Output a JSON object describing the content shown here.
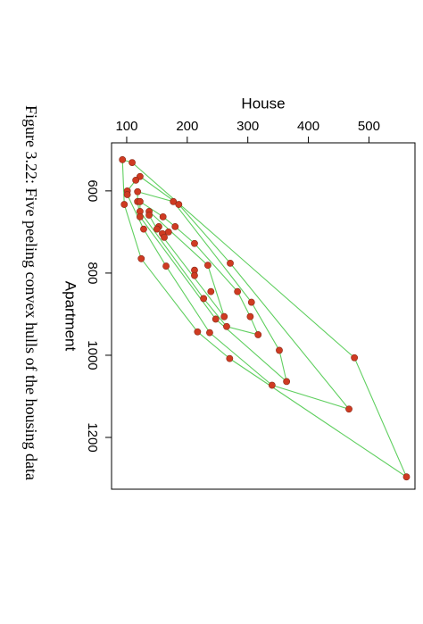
{
  "chart_data": {
    "type": "scatter",
    "caption": "Figure 3.22: Five peeling convex hulls of the housing data",
    "x_label": "House",
    "y_label": "Apartment",
    "x": [
      93,
      109,
      122,
      115,
      101,
      101,
      118,
      96,
      118,
      122,
      177,
      186,
      122,
      137,
      137,
      122,
      160,
      153,
      128,
      150,
      159,
      169,
      180,
      162,
      212,
      124,
      271,
      234,
      165,
      212,
      212,
      239,
      283,
      227,
      306,
      247,
      261,
      265,
      217,
      237,
      317,
      304,
      270,
      352,
      476,
      340,
      364,
      467,
      562
    ],
    "values": [
      524,
      531,
      565,
      574,
      600,
      609,
      602,
      633,
      626,
      626,
      626,
      633,
      650,
      650,
      659,
      663,
      663,
      687,
      693,
      693,
      704,
      700,
      687,
      713,
      728,
      765,
      776,
      781,
      783,
      793,
      806,
      845,
      845,
      862,
      871,
      912,
      906,
      930,
      943,
      945,
      950,
      906,
      1008,
      988,
      1006,
      1073,
      1064,
      1131,
      1296
    ],
    "color": "#cf3b22",
    "line_color": "#5fcf5f",
    "peel_layers": 5,
    "xlim": [
      75,
      576
    ],
    "ylim": [
      483,
      1326
    ],
    "xticks": [
      100,
      200,
      300,
      400,
      500
    ],
    "yticks": [
      600,
      800,
      1000,
      1200
    ]
  }
}
